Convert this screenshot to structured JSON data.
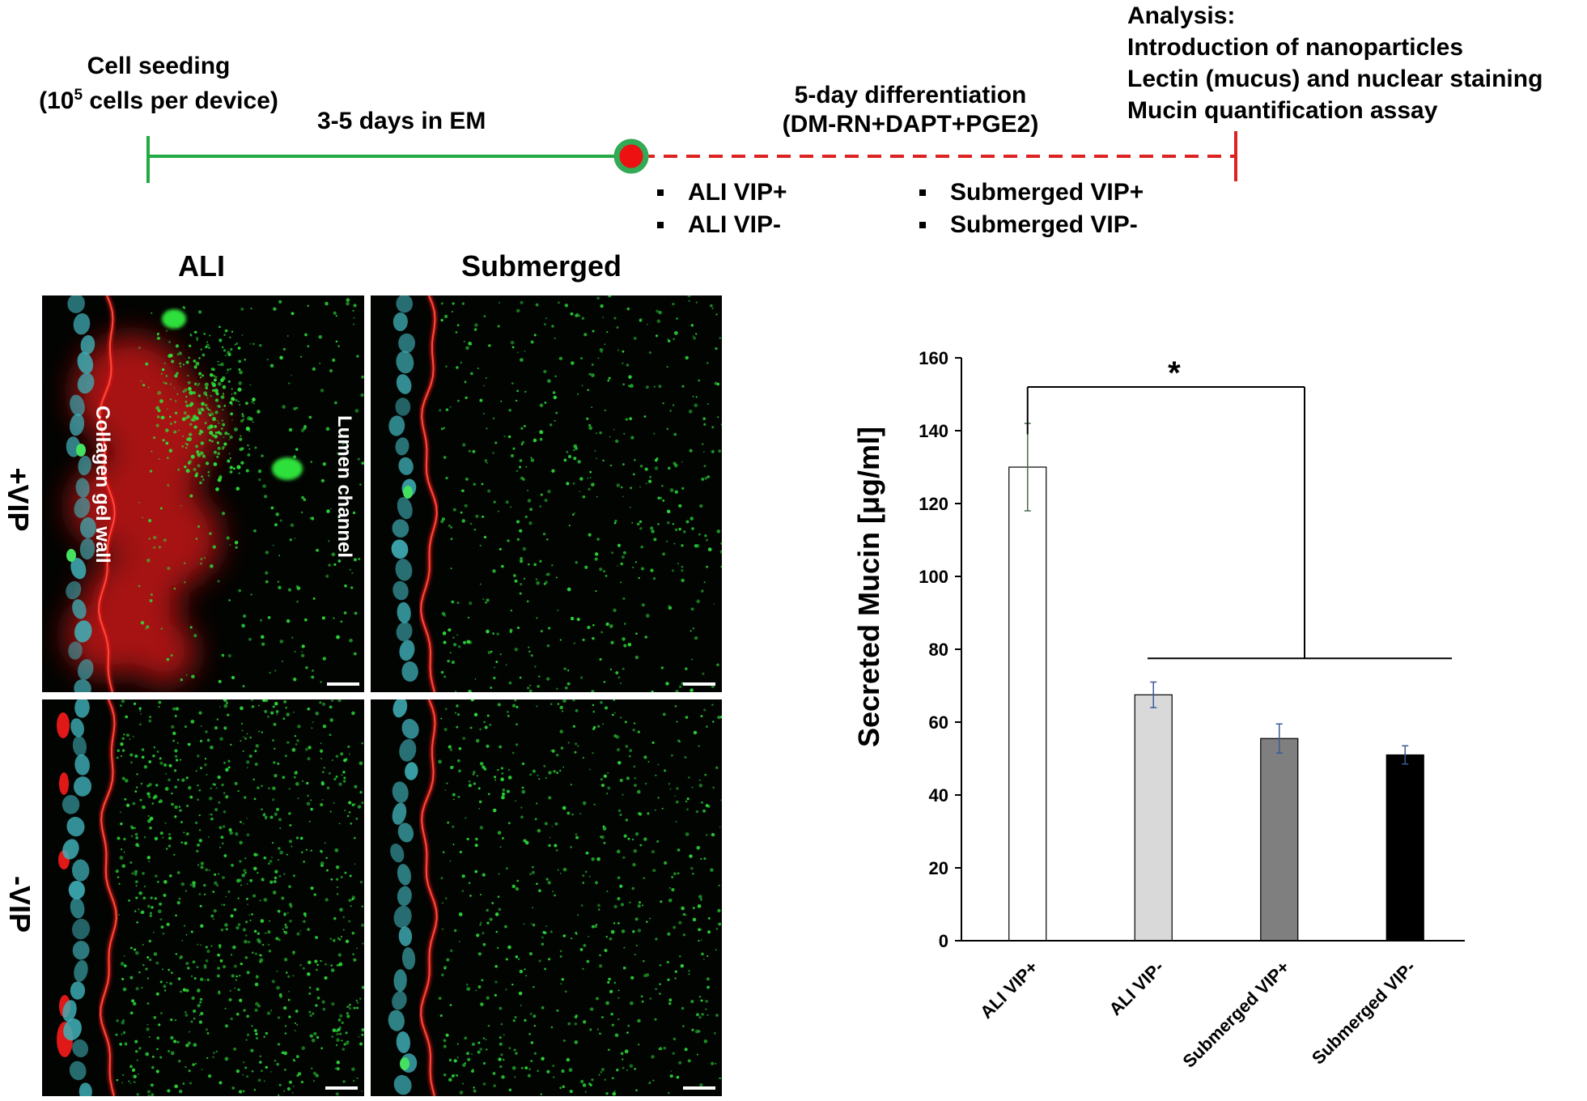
{
  "timeline": {
    "seeding_line1": "Cell seeding",
    "seeding_line2_pre": "(10",
    "seeding_line2_sup": "5",
    "seeding_line2_post": " cells per device)",
    "em_label": "3-5 days in EM",
    "diff_line1": "5-day differentiation",
    "diff_line2": "(DM-RN+DAPT+PGE2)",
    "analysis": [
      "Analysis:",
      "Introduction of nanoparticles",
      "Lectin (mucus) and nuclear staining",
      "Mucin quantification assay"
    ],
    "conditions_left": [
      "ALI VIP+",
      "ALI VIP-"
    ],
    "conditions_right": [
      "Submerged VIP+",
      "Submerged VIP-"
    ],
    "colors": {
      "solid_line": "#22aa44",
      "dashed_line": "#dd2222",
      "node_fill": "#ee1111",
      "node_ring": "#33aa55"
    }
  },
  "micrographs": {
    "column_headers": [
      "ALI",
      "Submerged"
    ],
    "row_headers": [
      "+VIP",
      "-VIP"
    ],
    "panel_labels": {
      "left": "Collagen gel wall",
      "right": "Lumen channel"
    },
    "colors": {
      "nuclei": "#3fb0b8",
      "membrane": "#e01818",
      "particles": "#2ee03a",
      "background": "#020402"
    }
  },
  "chart_data": {
    "type": "bar",
    "categories": [
      "ALI VIP+",
      "ALI VIP-",
      "Submerged VIP+",
      "Submerged VIP-"
    ],
    "values": [
      130,
      67.5,
      55.5,
      51
    ],
    "errors": [
      12,
      3.5,
      4,
      2.5
    ],
    "bar_colors": [
      "#ffffff",
      "#d9d9d9",
      "#7f7f7f",
      "#000000"
    ],
    "ylabel": "Secreted Mucin [μg/ml]",
    "ylim": [
      0,
      160
    ],
    "yticks": [
      0,
      20,
      40,
      60,
      80,
      100,
      120,
      140,
      160
    ],
    "significance": {
      "label": "*",
      "from": "ALI VIP+",
      "to": [
        "ALI VIP-",
        "Submerged VIP+",
        "Submerged VIP-"
      ]
    },
    "grid": false
  }
}
